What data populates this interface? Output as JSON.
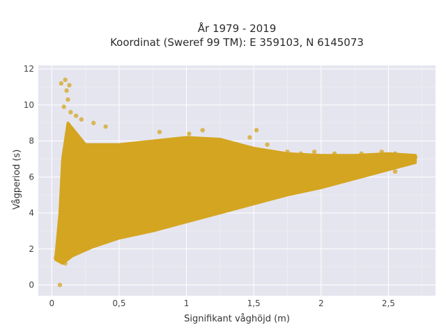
{
  "chart_data": {
    "type": "scatter",
    "title_line1": "År 1979 - 2019",
    "title_line2": "Koordinat (Sweref 99 TM): E 359103, N 6145073",
    "xlabel": "Signifikant våghöjd (m)",
    "ylabel": "Vågperiod (s)",
    "xlim": [
      -0.1,
      2.85
    ],
    "ylim": [
      -0.6,
      12.2
    ],
    "x_ticks": [
      0,
      0.5,
      1,
      1.5,
      2,
      2.5
    ],
    "x_tick_labels": [
      "0",
      "0,5",
      "1",
      "1,5",
      "2",
      "2,5"
    ],
    "y_ticks": [
      0,
      2,
      4,
      6,
      8,
      10,
      12
    ],
    "y_tick_labels": [
      "0",
      "2",
      "4",
      "6",
      "8",
      "10",
      "12"
    ],
    "grid": true,
    "plot_background": "#e5e5ef",
    "point_color": "#d4a520",
    "point_opacity": 0.75,
    "series": [
      {
        "envelope_lower": [
          [
            0.03,
            1.4
          ],
          [
            0.08,
            1.2
          ],
          [
            0.15,
            1.6
          ],
          [
            0.3,
            2.1
          ],
          [
            0.5,
            2.6
          ],
          [
            0.75,
            3.0
          ],
          [
            1.0,
            3.5
          ],
          [
            1.25,
            4.0
          ],
          [
            1.5,
            4.5
          ],
          [
            1.75,
            5.0
          ],
          [
            2.0,
            5.4
          ],
          [
            2.25,
            5.9
          ],
          [
            2.5,
            6.4
          ],
          [
            2.7,
            6.8
          ]
        ],
        "envelope_upper": [
          [
            0.03,
            1.6
          ],
          [
            0.06,
            4.0
          ],
          [
            0.08,
            7.0
          ],
          [
            0.12,
            9.0
          ],
          [
            0.25,
            7.8
          ],
          [
            0.5,
            7.8
          ],
          [
            0.75,
            8.0
          ],
          [
            1.0,
            8.2
          ],
          [
            1.25,
            8.1
          ],
          [
            1.5,
            7.6
          ],
          [
            1.75,
            7.3
          ],
          [
            2.0,
            7.2
          ],
          [
            2.25,
            7.2
          ],
          [
            2.5,
            7.3
          ],
          [
            2.7,
            7.2
          ]
        ],
        "points": [
          [
            0.06,
            0.0
          ],
          [
            0.07,
            11.2
          ],
          [
            0.1,
            11.4
          ],
          [
            0.13,
            11.1
          ],
          [
            0.11,
            10.8
          ],
          [
            0.12,
            10.3
          ],
          [
            0.09,
            9.9
          ],
          [
            0.14,
            9.6
          ],
          [
            0.18,
            9.4
          ],
          [
            0.22,
            9.2
          ],
          [
            0.31,
            9.0
          ],
          [
            0.4,
            8.8
          ],
          [
            0.8,
            8.5
          ],
          [
            1.02,
            8.4
          ],
          [
            1.12,
            8.6
          ],
          [
            1.52,
            8.6
          ],
          [
            1.47,
            8.2
          ],
          [
            1.6,
            7.8
          ],
          [
            1.75,
            7.4
          ],
          [
            1.85,
            7.3
          ],
          [
            1.95,
            7.4
          ],
          [
            2.1,
            7.3
          ],
          [
            2.3,
            7.3
          ],
          [
            2.45,
            7.4
          ],
          [
            2.55,
            7.3
          ],
          [
            2.6,
            7.1
          ],
          [
            2.7,
            7.1
          ],
          [
            2.4,
            6.6
          ],
          [
            2.5,
            6.7
          ],
          [
            2.65,
            6.9
          ],
          [
            2.55,
            6.3
          ],
          [
            0.03,
            1.5
          ],
          [
            0.05,
            1.4
          ],
          [
            0.1,
            1.2
          ]
        ]
      }
    ]
  }
}
